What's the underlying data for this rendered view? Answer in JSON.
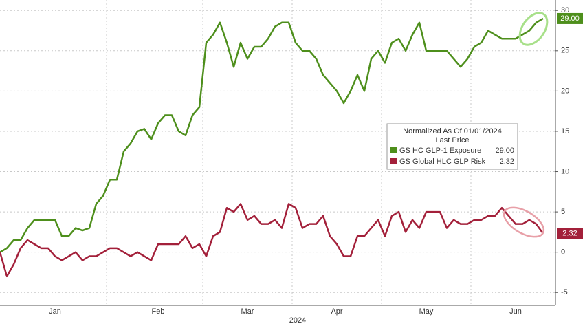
{
  "chart_data": {
    "type": "line",
    "categories": [
      null,
      null,
      null,
      null,
      null,
      null,
      null,
      null,
      "Jan",
      null,
      null,
      null,
      null,
      null,
      null,
      null,
      null,
      null,
      null,
      null,
      null,
      null,
      null,
      "Feb",
      null,
      null,
      null,
      null,
      null,
      null,
      null,
      null,
      null,
      null,
      null,
      null,
      "Mar",
      null,
      null,
      null,
      null,
      null,
      null,
      null,
      null,
      null,
      null,
      null,
      null,
      "Apr",
      null,
      null,
      null,
      null,
      null,
      null,
      null,
      null,
      null,
      null,
      null,
      null,
      "May",
      null,
      null,
      null,
      null,
      null,
      null,
      null,
      null,
      null,
      null,
      null,
      null,
      "Jun",
      null,
      null,
      null,
      null
    ],
    "x_axis_label": "2024",
    "series": [
      {
        "name": "GS HC GLP-1 Exposure",
        "color": "#4e8f1c",
        "last_label": "29.00",
        "values": [
          0,
          0.5,
          1.5,
          1.5,
          3,
          4,
          4,
          4,
          4,
          2,
          2,
          3,
          2.7,
          3,
          6,
          7,
          9,
          9,
          12.5,
          13.5,
          15,
          15.3,
          14,
          16,
          17,
          17,
          15,
          14.5,
          17,
          18,
          26,
          27,
          28.5,
          26,
          23,
          26,
          24,
          25.5,
          25.5,
          26.5,
          28,
          28.5,
          28.5,
          26,
          25,
          25,
          24,
          22,
          21,
          20,
          18.5,
          20,
          22,
          20,
          24,
          25,
          23.5,
          26,
          26.5,
          25,
          27,
          28.5,
          25,
          25,
          25,
          25,
          24,
          23,
          24,
          25.5,
          26,
          27.5,
          27,
          26.5,
          26.5,
          26.5,
          27,
          27.5,
          28.5,
          29
        ]
      },
      {
        "name": "GS Global HLC GLP Risk",
        "color": "#a3203a",
        "last_label": "2.32",
        "values": [
          0,
          -3,
          -1.5,
          0.5,
          1.5,
          1,
          0.5,
          0.5,
          -0.5,
          -1,
          -0.5,
          0,
          -1,
          -0.5,
          -0.5,
          0,
          0.5,
          0.5,
          0,
          -0.5,
          0,
          -0.5,
          -1,
          1,
          1,
          1,
          1,
          2,
          0.5,
          1,
          -0.5,
          2,
          2.5,
          5.5,
          5,
          6,
          4,
          4.5,
          3.5,
          3.5,
          4,
          3,
          6,
          5.5,
          3,
          3.5,
          3.5,
          4.5,
          2,
          1,
          -0.5,
          -0.5,
          2,
          2,
          3,
          4,
          2,
          4.5,
          5,
          2.5,
          4,
          3,
          5,
          5,
          5,
          3,
          4,
          3.5,
          3.5,
          4,
          4,
          4.5,
          4.5,
          5.5,
          4.5,
          3.5,
          3.5,
          4,
          3.5,
          2.32
        ]
      }
    ],
    "legend_title": "Normalized As Of 01/01/2024",
    "legend_subtitle": "Last Price",
    "ylim": [
      -6.6,
      31.3
    ],
    "yticks": [
      -5,
      0,
      5,
      10,
      15,
      20,
      25,
      30
    ],
    "grid": true
  }
}
